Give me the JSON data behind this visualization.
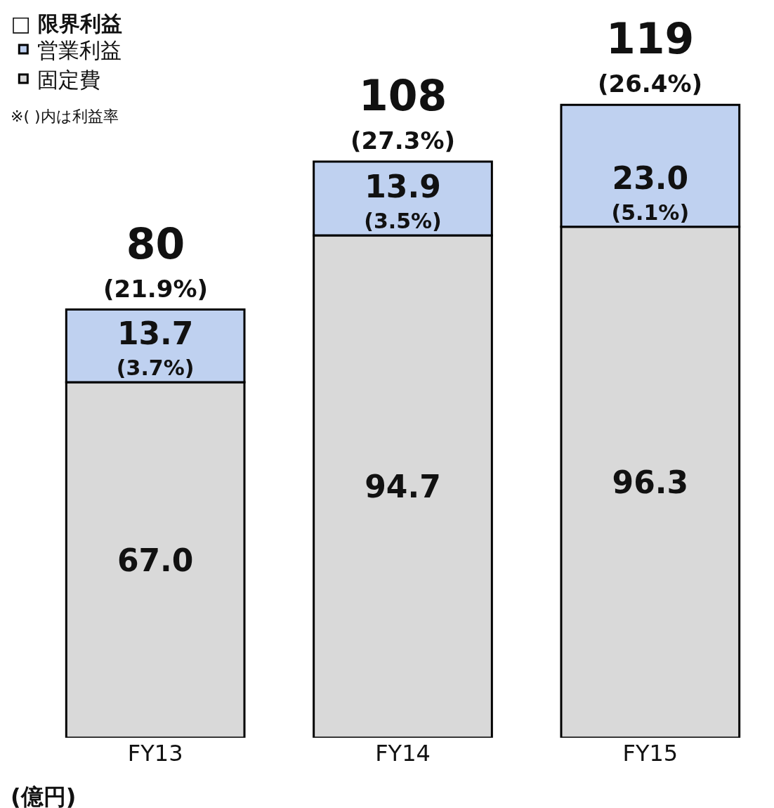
{
  "chart_data": {
    "type": "bar",
    "stacked": true,
    "categories": [
      "FY13",
      "FY14",
      "FY15"
    ],
    "series": [
      {
        "name": "固定費",
        "color": "#d9d9d9",
        "values": [
          67.0,
          94.7,
          96.3
        ],
        "value_labels": [
          "67.0",
          "94.7",
          "96.3"
        ]
      },
      {
        "name": "営業利益",
        "color": "#bfd1f0",
        "values": [
          13.7,
          13.9,
          23.0
        ],
        "value_labels": [
          "13.7\n(3.7%)",
          "13.9\n(3.5%)",
          "23.0\n(5.1%)"
        ]
      }
    ],
    "legend_title": "□ 限界利益",
    "totals": [
      "80\n(21.9%)",
      "108\n(27.3%)",
      "119\n(26.4%)"
    ],
    "legend": "top left",
    "annotations": [
      "※( )内は利益率",
      "(億円)"
    ]
  }
}
